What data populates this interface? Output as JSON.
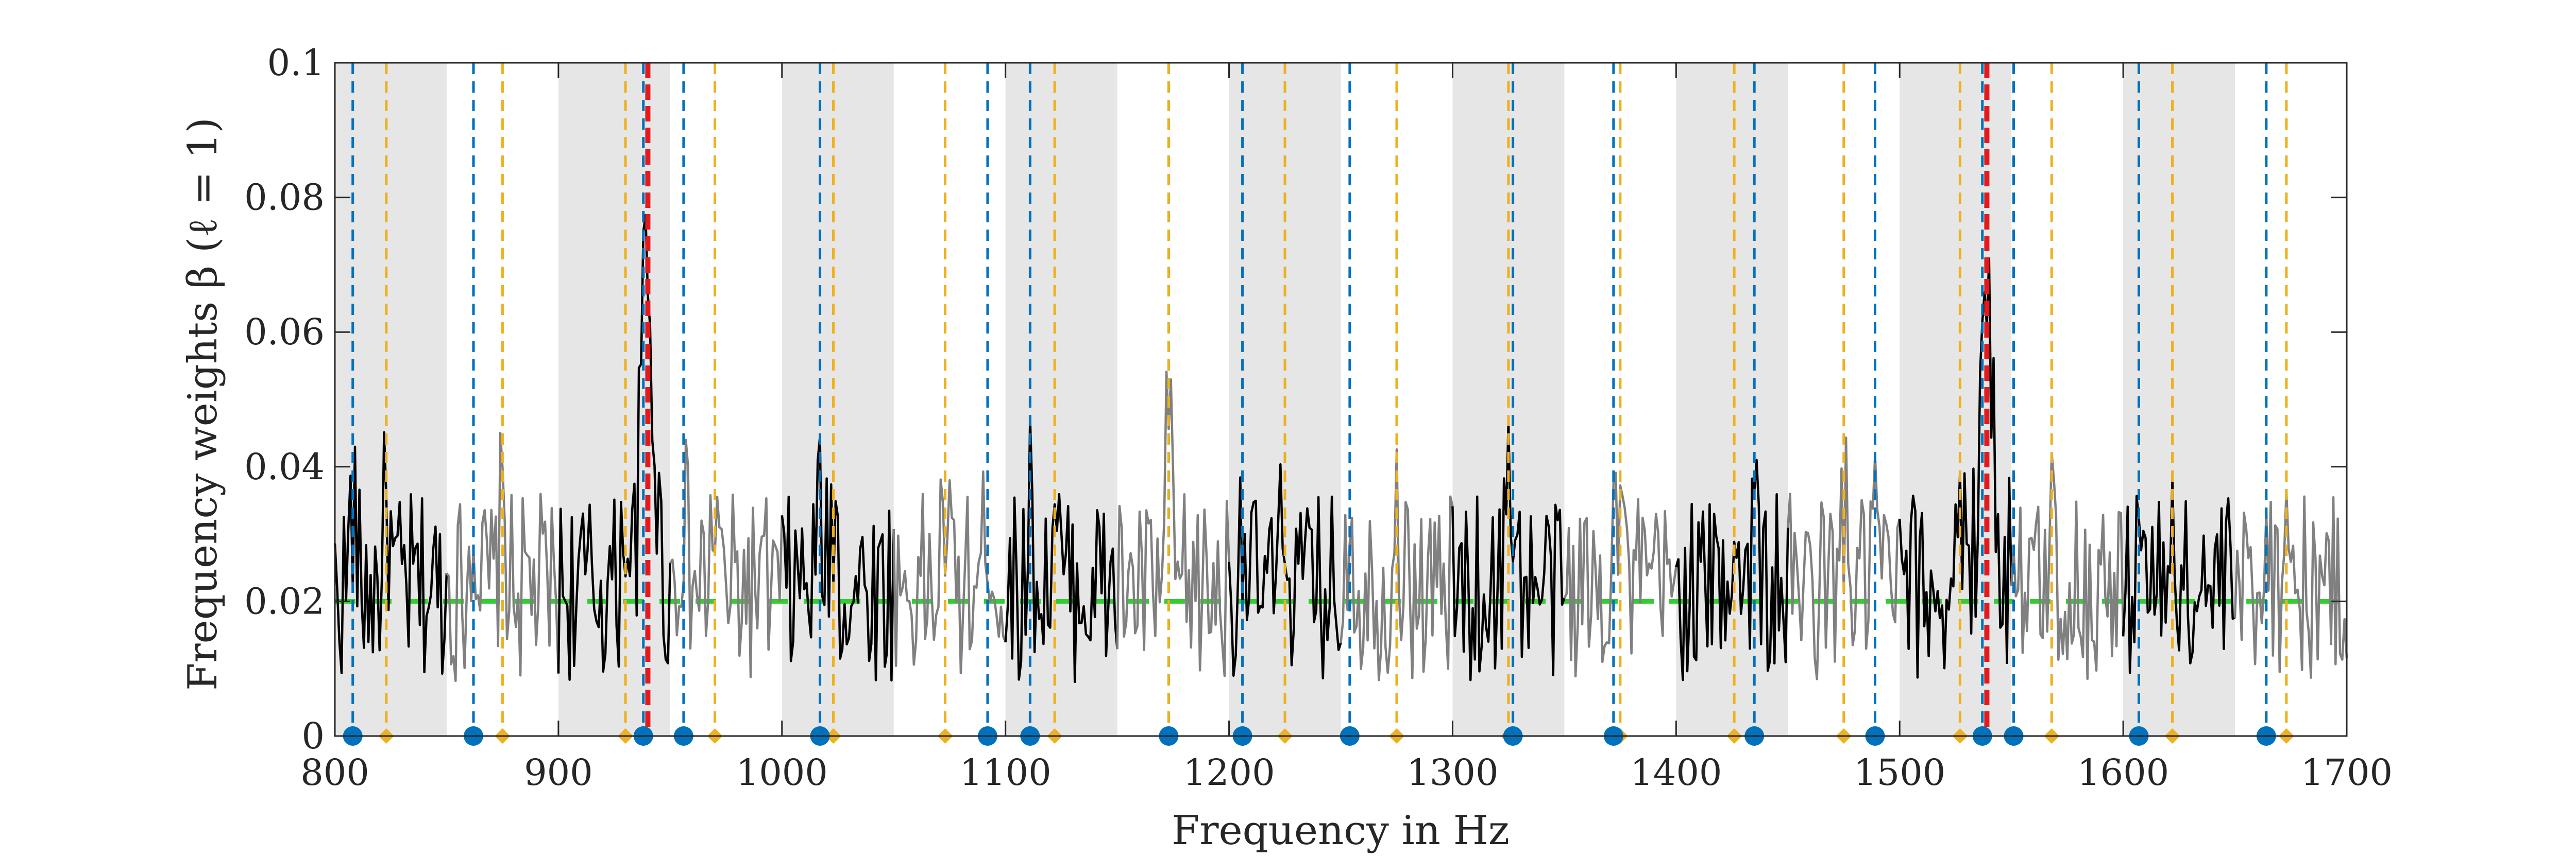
{
  "chart_data": {
    "type": "line",
    "xlabel": "Frequency in Hz",
    "ylabel": "Frequency weights β (ℓ = 1)",
    "xlim": [
      800,
      1700
    ],
    "ylim": [
      0,
      0.1
    ],
    "x_ticks": [
      "800",
      "900",
      "1000",
      "1100",
      "1200",
      "1300",
      "1400",
      "1500",
      "1600",
      "1700"
    ],
    "y_ticks": [
      "0",
      "0.02",
      "0.04",
      "0.06",
      "0.08",
      "0.1"
    ],
    "grid": false,
    "legend": "none",
    "shaded_bands": [
      [
        800,
        850
      ],
      [
        900,
        950
      ],
      [
        1000,
        1050
      ],
      [
        1100,
        1150
      ],
      [
        1200,
        1250
      ],
      [
        1300,
        1350
      ],
      [
        1400,
        1450
      ],
      [
        1500,
        1550
      ],
      [
        1600,
        1650
      ]
    ],
    "threshold": 0.02,
    "blue_markers_hz": [
      808,
      862,
      938,
      956,
      1017,
      1092,
      1111,
      1173,
      1206,
      1254,
      1327,
      1372,
      1435,
      1489,
      1537,
      1551,
      1607,
      1664
    ],
    "orange_markers_hz": [
      823,
      875,
      930,
      970,
      1023,
      1073,
      1122,
      1173,
      1225,
      1275,
      1325,
      1375,
      1426,
      1475,
      1527,
      1568,
      1622,
      1673
    ],
    "red_lines_hz": [
      940,
      1539
    ],
    "colors": {
      "band": "#e6e6e6",
      "in_band_series": "#000000",
      "out_band_series": "#808080",
      "blue_marker": "#0072bd",
      "orange_marker": "#edb120",
      "red_line": "#e31a1c",
      "threshold_line": "#33cc33",
      "axis": "#262626"
    }
  }
}
